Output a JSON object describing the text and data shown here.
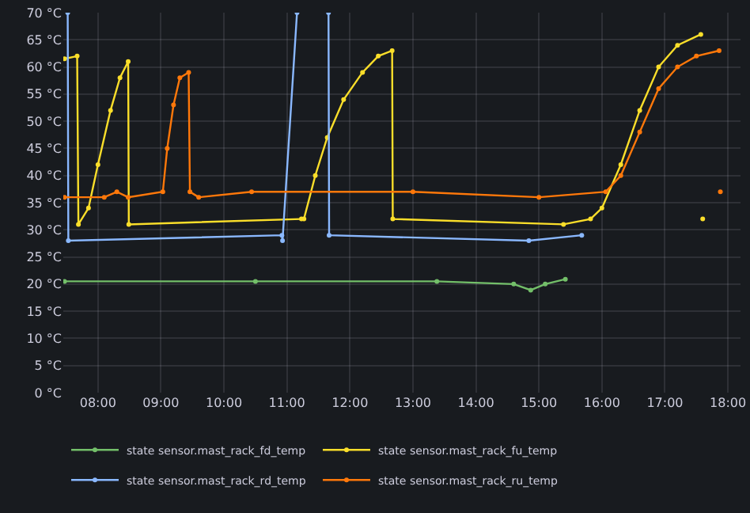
{
  "chart_data": {
    "type": "line",
    "xlim": [
      7.45,
      18.2
    ],
    "ylim": [
      0,
      70
    ],
    "xticks": [
      {
        "value": 8,
        "label": "08:00"
      },
      {
        "value": 9,
        "label": "09:00"
      },
      {
        "value": 10,
        "label": "10:00"
      },
      {
        "value": 11,
        "label": "11:00"
      },
      {
        "value": 12,
        "label": "12:00"
      },
      {
        "value": 13,
        "label": "13:00"
      },
      {
        "value": 14,
        "label": "14:00"
      },
      {
        "value": 15,
        "label": "15:00"
      },
      {
        "value": 16,
        "label": "16:00"
      },
      {
        "value": 17,
        "label": "17:00"
      },
      {
        "value": 18,
        "label": "18:00"
      }
    ],
    "yticks": [
      {
        "value": 0,
        "label": "0 °C"
      },
      {
        "value": 5,
        "label": "5 °C"
      },
      {
        "value": 10,
        "label": "10 °C"
      },
      {
        "value": 15,
        "label": "15 °C"
      },
      {
        "value": 20,
        "label": "20 °C"
      },
      {
        "value": 25,
        "label": "25 °C"
      },
      {
        "value": 30,
        "label": "30 °C"
      },
      {
        "value": 35,
        "label": "35 °C"
      },
      {
        "value": 40,
        "label": "40 °C"
      },
      {
        "value": 45,
        "label": "45 °C"
      },
      {
        "value": 50,
        "label": "50 °C"
      },
      {
        "value": 55,
        "label": "55 °C"
      },
      {
        "value": 60,
        "label": "60 °C"
      },
      {
        "value": 65,
        "label": "65 °C"
      },
      {
        "value": 70,
        "label": "70 °C"
      }
    ],
    "grid": true,
    "legend": "bottom",
    "marker": "circle",
    "line_style": "solid",
    "series": [
      {
        "name": "state sensor.mast_rack_fd_temp",
        "color": "#73bf69",
        "x": [
          7.47,
          10.5,
          13.38,
          14.6,
          14.87,
          15.1,
          15.42
        ],
        "values": [
          20.5,
          20.5,
          20.5,
          20,
          18.9,
          20,
          20.9
        ]
      },
      {
        "name": "state sensor.mast_rack_fu_temp",
        "color": "#fade2a",
        "x": [
          7.47,
          7.67,
          7.69,
          7.85,
          8.0,
          8.2,
          8.35,
          8.48,
          8.49,
          11.23,
          11.27,
          11.45,
          11.64,
          11.9,
          12.2,
          12.45,
          12.67,
          12.68,
          15.39,
          15.82,
          16.0,
          16.3,
          16.6,
          16.9,
          17.2,
          17.57,
          17.58,
          17.6
        ],
        "values": [
          61.5,
          62,
          31,
          34,
          42,
          52,
          58,
          61,
          31,
          32,
          32,
          40,
          47,
          54,
          59,
          62,
          63,
          32,
          31,
          32,
          34,
          42,
          52,
          60,
          64,
          66,
          null,
          32
        ]
      },
      {
        "name": "state sensor.mast_rack_rd_temp",
        "color": "#8ab8ff",
        "x": [
          7.52,
          7.53,
          10.92,
          10.93,
          11.16,
          11.4,
          11.66,
          11.67,
          14.84,
          15.68
        ],
        "values": [
          70,
          28,
          29,
          28,
          70,
          null,
          70,
          29,
          28,
          29
        ]
      },
      {
        "name": "state sensor.mast_rack_ru_temp",
        "color": "#ff780a",
        "x": [
          7.47,
          8.1,
          8.3,
          8.48,
          9.03,
          9.1,
          9.2,
          9.3,
          9.44,
          9.46,
          9.6,
          10.44,
          13.0,
          15.0,
          16.06,
          16.3,
          16.6,
          16.9,
          17.2,
          17.5,
          17.86,
          17.87,
          17.88
        ],
        "values": [
          36,
          36,
          37,
          36,
          37,
          45,
          53,
          58,
          59,
          37,
          36,
          37,
          37,
          36,
          37,
          40,
          48,
          56,
          60,
          62,
          63,
          null,
          37
        ]
      }
    ]
  }
}
